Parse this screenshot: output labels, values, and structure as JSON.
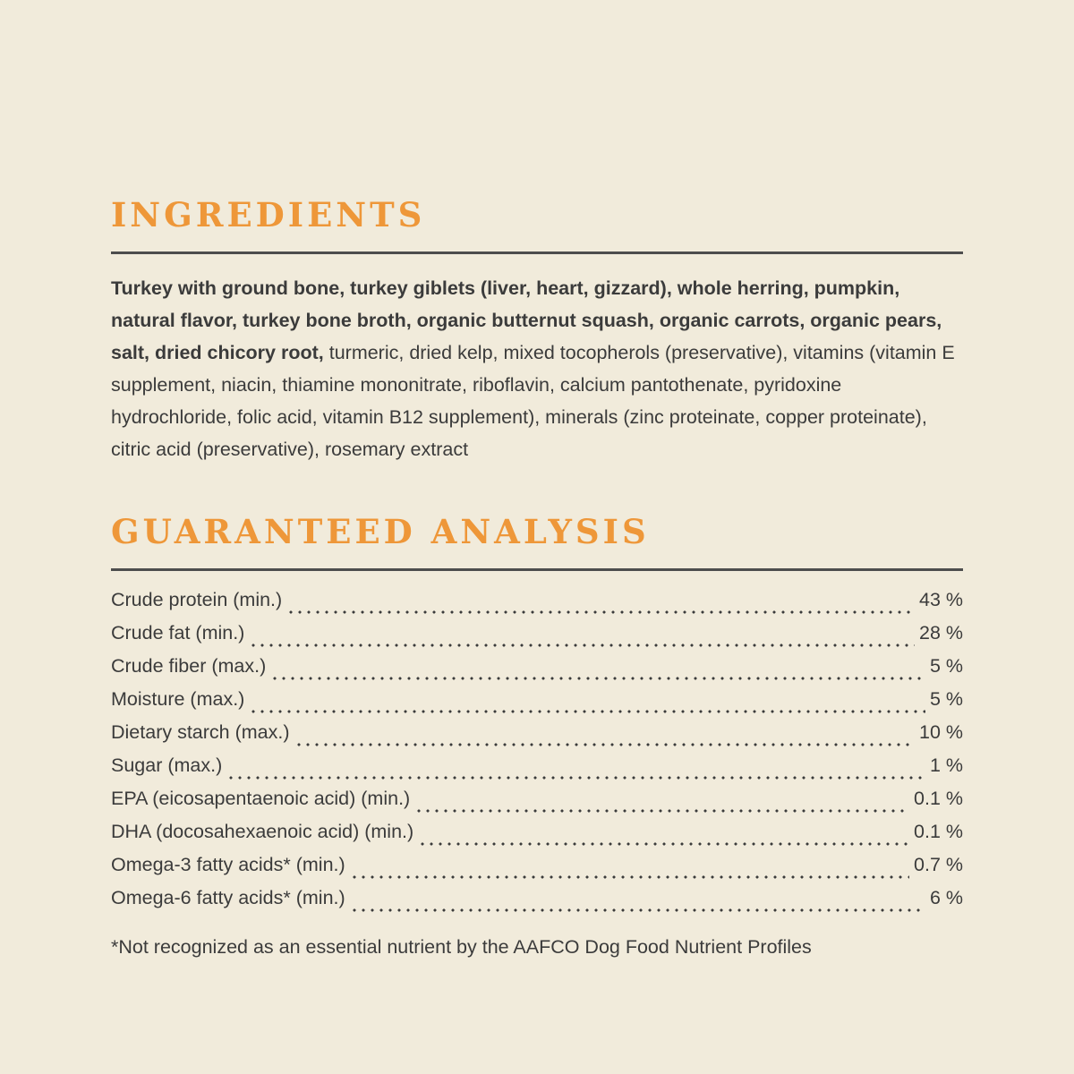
{
  "colors": {
    "background": "#f1ebdb",
    "accent_orange": "#ee9739",
    "rule_gray": "#4d4d4d",
    "text": "#3b3b3b"
  },
  "ingredients": {
    "title": "INGREDIENTS",
    "bold_text": "Turkey with ground bone, turkey giblets (liver, heart, gizzard), whole herring, pumpkin, natural flavor, turkey bone broth, organic butternut squash, organic carrots, organic pears, salt, dried chicory root,",
    "regular_text": " turmeric, dried kelp, mixed tocopherols (preservative), vitamins (vitamin E supplement, niacin, thiamine mononitrate, riboflavin, calcium pantothenate, pyridoxine hydrochloride, folic acid, vitamin B12 supplement), minerals (zinc proteinate, copper proteinate), citric acid (preservative), rosemary extract"
  },
  "analysis": {
    "title": "GUARANTEED ANALYSIS",
    "rows": [
      {
        "label": "Crude protein (min.)",
        "value": "43 %"
      },
      {
        "label": "Crude fat (min.)",
        "value": "28 %"
      },
      {
        "label": "Crude fiber (max.)",
        "value": "5 %"
      },
      {
        "label": "Moisture (max.)",
        "value": "5 %"
      },
      {
        "label": "Dietary starch (max.)",
        "value": "10 %"
      },
      {
        "label": "Sugar (max.)",
        "value": "1 %"
      },
      {
        "label": "EPA (eicosapentaenoic acid) (min.)",
        "value": "0.1 %"
      },
      {
        "label": "DHA (docosahexaenoic acid) (min.)",
        "value": "0.1 %"
      },
      {
        "label": "Omega-3 fatty acids* (min.)",
        "value": "0.7 %"
      },
      {
        "label": "Omega-6 fatty acids* (min.)",
        "value": "6 %"
      }
    ],
    "footnote": "*Not recognized as an essential nutrient by the AAFCO Dog Food Nutrient Profiles"
  }
}
